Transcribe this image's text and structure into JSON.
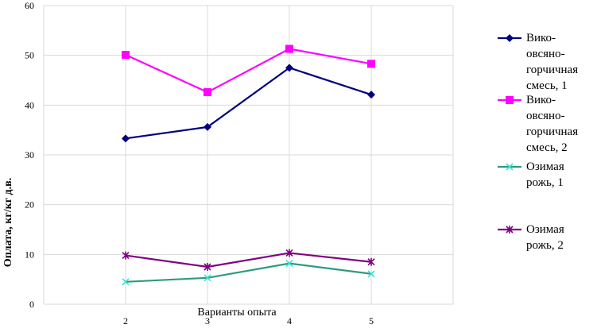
{
  "chart_data": {
    "type": "line",
    "title": "",
    "xlabel": "Варианты опыта",
    "ylabel": "Оплата, кг/кг д.в.",
    "categories": [
      "2",
      "3",
      "4",
      "5"
    ],
    "y_ticks": [
      "0",
      "10",
      "20",
      "30",
      "40",
      "50",
      "60"
    ],
    "ylim": [
      0,
      60
    ],
    "grid": true,
    "legend_position": "right",
    "series": [
      {
        "name": "Вико-овсяно-горчичная смесь, 1",
        "legend_lines": [
          "Вико-",
          "овсяно-",
          "горчичная",
          "смесь, 1"
        ],
        "values": [
          33.3,
          35.6,
          47.5,
          42.1
        ],
        "color": "#000080",
        "marker": "diamond"
      },
      {
        "name": "Вико-овсяно-горчичная смесь, 2",
        "legend_lines": [
          "Вико-",
          "овсяно-",
          "горчичная",
          "смесь, 2"
        ],
        "values": [
          50.1,
          42.6,
          51.3,
          48.3
        ],
        "color": "#ff00ff",
        "marker": "square"
      },
      {
        "name": "Озимая рожь, 1",
        "legend_lines": [
          "Озимая",
          "рожь, 1"
        ],
        "values": [
          4.5,
          5.3,
          8.2,
          6.1
        ],
        "color": "#2e9b7e",
        "marker": "x",
        "marker_color": "#40e0d0"
      },
      {
        "name": "Озимая рожь, 2",
        "legend_lines": [
          "Озимая",
          "рожь, 2"
        ],
        "values": [
          9.8,
          7.5,
          10.3,
          8.5
        ],
        "color": "#800080",
        "marker": "star"
      }
    ]
  }
}
